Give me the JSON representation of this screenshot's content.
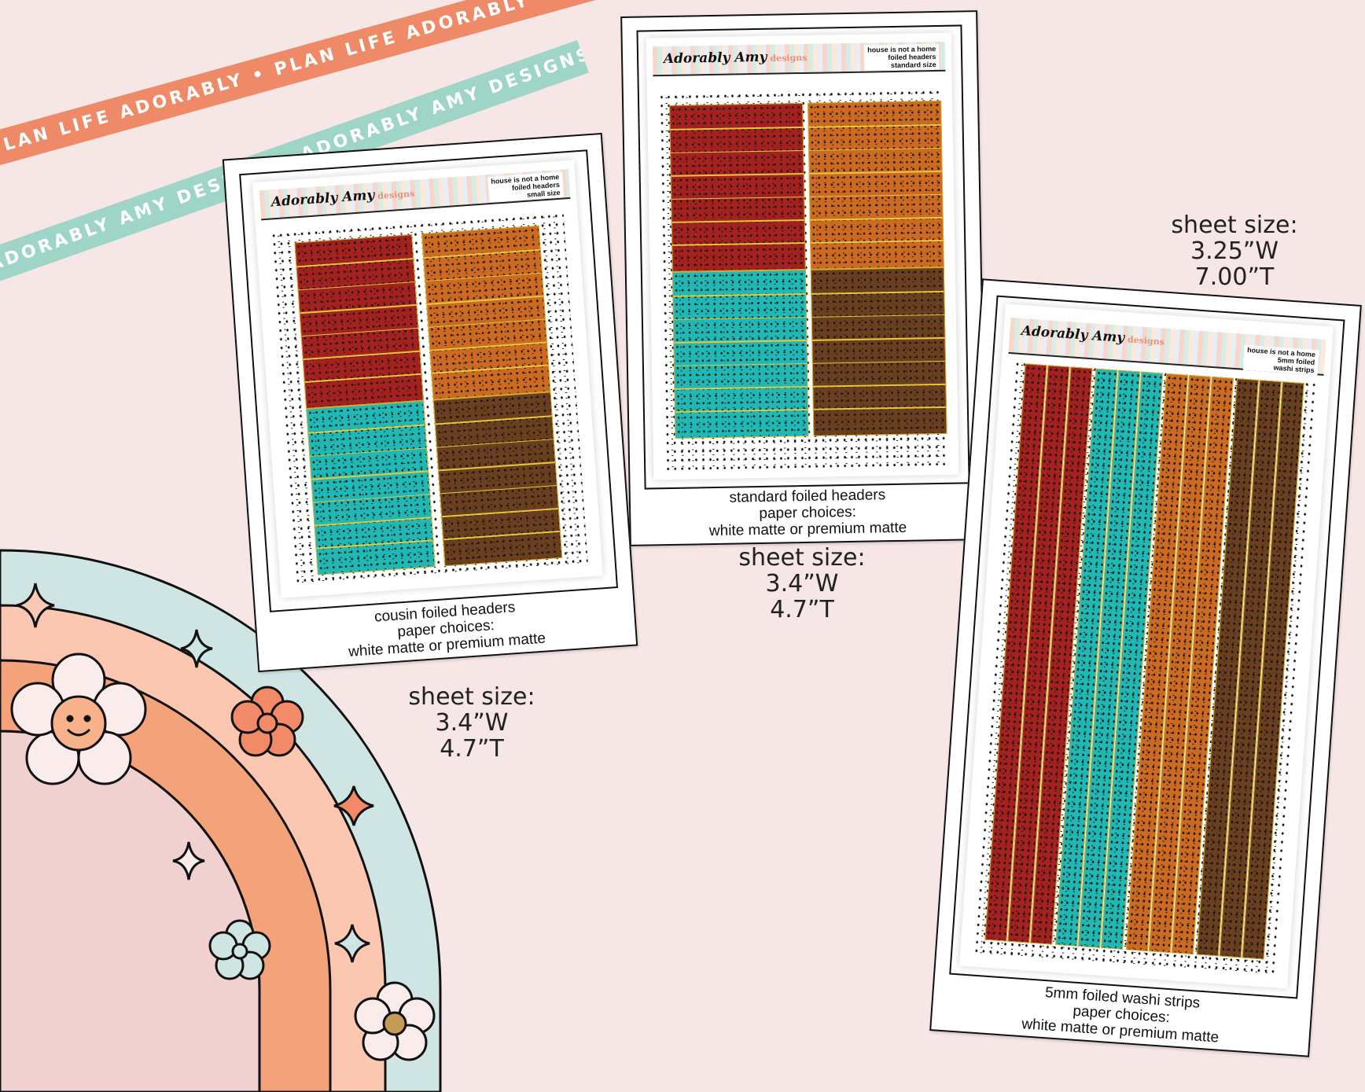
{
  "ribbons": {
    "orange_text": "PLAN LIFE ADORABLY • PLAN LIFE ADORABLY • PLAN LIFE ADORABLY •",
    "teal_text": "ADORABLY AMY DESIGNS• ADORABLY AMY DESIGNS• ADORABLY AMY DESIGNS•",
    "orange_color": "#ef8a68",
    "teal_color": "#9fd5c7"
  },
  "brand": {
    "name": "Adorably Amy",
    "sub": "designs"
  },
  "cards": {
    "cousin": {
      "header_right": [
        "house is not a home",
        "foiled headers",
        "small size"
      ],
      "caption": [
        "cousin foiled headers",
        "paper choices:",
        "white matte or premium matte"
      ],
      "size": [
        "sheet size:",
        "3.4”W",
        "4.7”T"
      ]
    },
    "standard": {
      "header_right": [
        "house is not a home",
        "foiled headers",
        "standard size"
      ],
      "caption": [
        "standard foiled headers",
        "paper choices:",
        "white matte or premium matte"
      ],
      "size": [
        "sheet size:",
        "3.4”W",
        "4.7”T"
      ]
    },
    "washi": {
      "header_right": [
        "house is not a home",
        "5mm foiled",
        "washi strips"
      ],
      "caption": [
        "5mm foiled washi strips",
        "paper choices:",
        "white matte or premium matte"
      ],
      "size": [
        "sheet size:",
        "3.25”W",
        "7.00”T"
      ]
    }
  },
  "colors": {
    "red": "#a3211f",
    "orange": "#cc6a22",
    "teal": "#1fb8b5",
    "brown": "#6a3f1f",
    "foil": "#d4b02a"
  },
  "icons": [
    "sparkle-icon",
    "daisy-icon",
    "smiley-flower-icon",
    "flower-icon",
    "star-icon"
  ]
}
